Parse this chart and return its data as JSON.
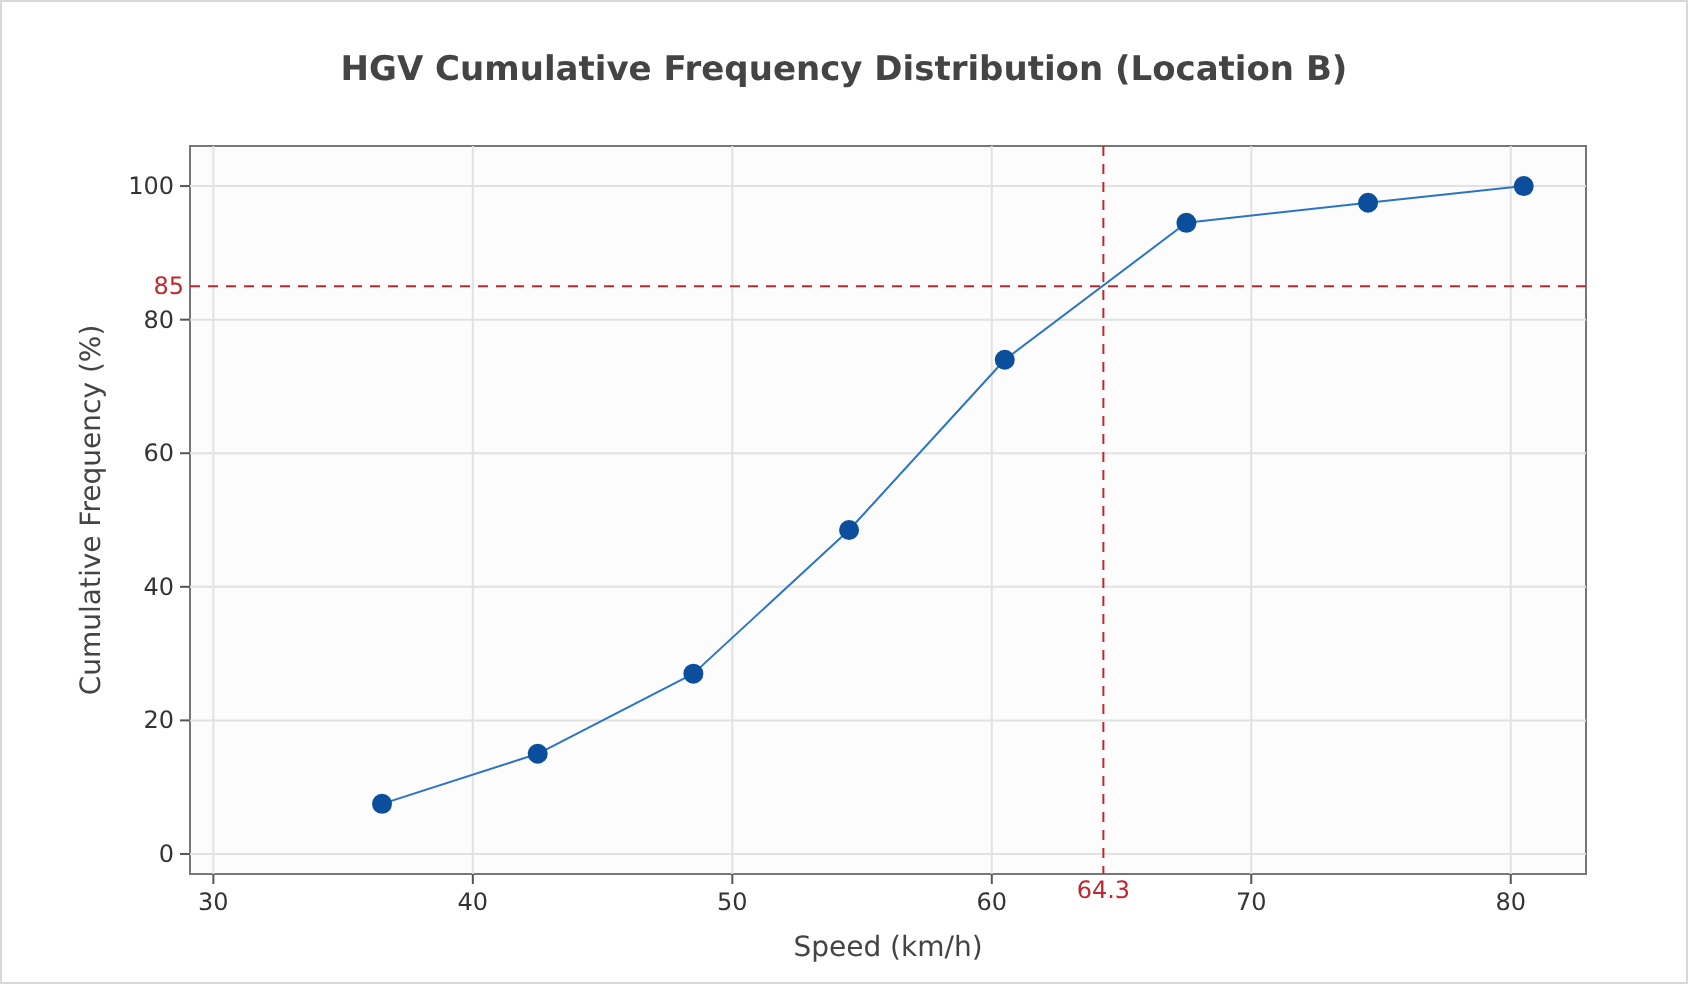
{
  "chart_data": {
    "type": "line",
    "title": "HGV Cumulative Frequency Distribution (Location B)",
    "xlabel": "Speed (km/h)",
    "ylabel": "Cumulative Frequency (%)",
    "x": [
      36.5,
      42.5,
      48.5,
      54.5,
      60.5,
      67.5,
      74.5,
      80.5
    ],
    "series": [
      {
        "color": "#0b4f9c",
        "values": [
          7.5,
          15,
          27,
          48.5,
          74,
          94.5,
          97.5,
          100
        ]
      }
    ],
    "xlim": [
      29.1,
      82.9
    ],
    "xticks": [
      30,
      40,
      50,
      60,
      70,
      80
    ],
    "ylim": [
      -3,
      106
    ],
    "yticks": [
      0,
      20,
      40,
      60,
      80,
      100
    ],
    "grid": true,
    "marker": "circle",
    "line_style": "solid",
    "ref_lines": [
      {
        "axis": "y",
        "value": 85,
        "label": "85",
        "color": "#c0282d",
        "line_style": "dashed"
      },
      {
        "axis": "x",
        "value": 64.3,
        "label": "64.3",
        "color": "#c0282d",
        "line_style": "dashed"
      }
    ]
  }
}
